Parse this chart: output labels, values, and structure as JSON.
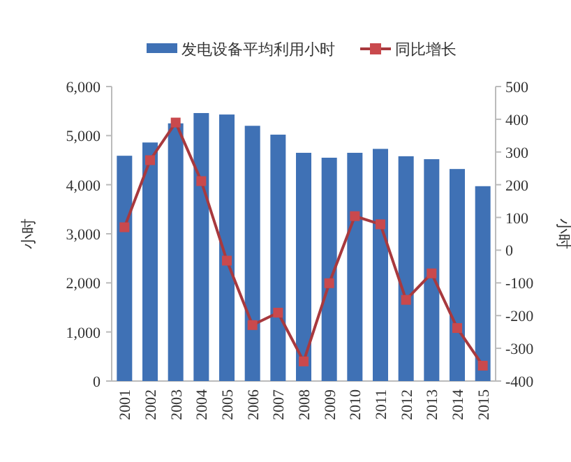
{
  "chart_data": {
    "type": "bar",
    "categories": [
      "2001",
      "2002",
      "2003",
      "2004",
      "2005",
      "2006",
      "2007",
      "2008",
      "2009",
      "2010",
      "2011",
      "2012",
      "2013",
      "2014",
      "2015"
    ],
    "series": [
      {
        "name": "发电设备平均利用小时",
        "color": "#3f71b5",
        "values": [
          4590,
          4860,
          5250,
          5460,
          5430,
          5200,
          5020,
          4650,
          4550,
          4650,
          4730,
          4580,
          4520,
          4320,
          3970
        ]
      },
      {
        "name": "同比增长",
        "type": "line",
        "axis": "y2",
        "color": "#a8393e",
        "marker": "square",
        "values": [
          70,
          275,
          390,
          211,
          -32,
          -229,
          -191,
          -340,
          -101,
          104,
          79,
          -152,
          -71,
          -238,
          -353
        ]
      }
    ],
    "ylabel": "小时",
    "y2label": "小时",
    "ylim": [
      0,
      6000
    ],
    "yticks": [
      {
        "value": 0,
        "label": "0"
      },
      {
        "value": 1000,
        "label": "1,000"
      },
      {
        "value": 2000,
        "label": "2,000"
      },
      {
        "value": 3000,
        "label": "3,000"
      },
      {
        "value": 4000,
        "label": "4,000"
      },
      {
        "value": 5000,
        "label": "5,000"
      },
      {
        "value": 6000,
        "label": "6,000"
      }
    ],
    "y2lim": [
      -400,
      500
    ],
    "y2ticks": [
      -400,
      -300,
      -200,
      -100,
      0,
      100,
      200,
      300,
      400,
      500
    ],
    "legend": "top",
    "grid": false
  }
}
